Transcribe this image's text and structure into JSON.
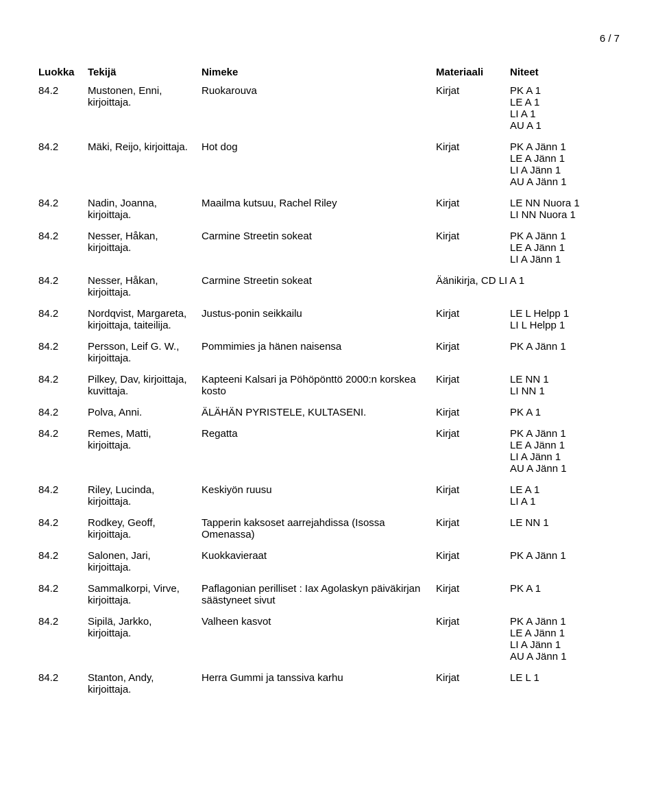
{
  "page_number": "6 / 7",
  "headers": {
    "luokka": "Luokka",
    "tekija": "Tekijä",
    "nimeke": "Nimeke",
    "materiaali": "Materiaali",
    "niteet": "Niteet"
  },
  "rows": [
    {
      "luokka": "84.2",
      "tekija": "Mustonen, Enni, kirjoittaja.",
      "nimeke": "Ruokarouva",
      "materiaali": "Kirjat",
      "niteet": [
        "PK A 1",
        "LE A 1",
        "LI A 1",
        "AU A 1"
      ]
    },
    {
      "luokka": "84.2",
      "tekija": "Mäki, Reijo, kirjoittaja.",
      "nimeke": "Hot dog",
      "materiaali": "Kirjat",
      "niteet": [
        "PK A Jänn 1",
        "LE A Jänn 1",
        "LI A Jänn 1",
        "AU A Jänn 1"
      ]
    },
    {
      "luokka": "84.2",
      "tekija": "Nadin, Joanna, kirjoittaja.",
      "nimeke": "Maailma kutsuu, Rachel Riley",
      "materiaali": "Kirjat",
      "niteet": [
        "LE NN Nuora 1",
        "LI NN Nuora 1"
      ]
    },
    {
      "luokka": "84.2",
      "tekija": "Nesser, Håkan, kirjoittaja.",
      "nimeke": "Carmine Streetin sokeat",
      "materiaali": "Kirjat",
      "niteet": [
        "PK A Jänn 1",
        "LE A Jänn 1",
        "LI A Jänn 1"
      ]
    },
    {
      "luokka": "84.2",
      "tekija": "Nesser, Håkan, kirjoittaja.",
      "nimeke": "Carmine Streetin sokeat",
      "materiaali": "Äänikirja, CD",
      "niteet": [
        "LI A 1"
      ],
      "materiaali_niteet_merged": true
    },
    {
      "luokka": "84.2",
      "tekija": "Nordqvist, Margareta, kirjoittaja, taiteilija.",
      "nimeke": "Justus-ponin seikkailu",
      "materiaali": "Kirjat",
      "niteet": [
        "LE L Helpp 1",
        "LI L Helpp 1"
      ]
    },
    {
      "luokka": "84.2",
      "tekija": "Persson, Leif G. W., kirjoittaja.",
      "nimeke": "Pommimies ja hänen naisensa",
      "materiaali": "Kirjat",
      "niteet": [
        "PK A Jänn 1"
      ]
    },
    {
      "luokka": "84.2",
      "tekija": "Pilkey, Dav, kirjoittaja, kuvittaja.",
      "nimeke": "Kapteeni Kalsari ja Pöhöpönttö 2000:n korskea kosto",
      "materiaali": "Kirjat",
      "niteet": [
        "LE NN 1",
        "LI NN 1"
      ]
    },
    {
      "luokka": "84.2",
      "tekija": "Polva, Anni.",
      "nimeke": "ÄLÄHÄN PYRISTELE, KULTASENI.",
      "materiaali": "Kirjat",
      "niteet": [
        "PK A 1"
      ]
    },
    {
      "luokka": "84.2",
      "tekija": "Remes, Matti, kirjoittaja.",
      "nimeke": "Regatta",
      "materiaali": "Kirjat",
      "niteet": [
        "PK A Jänn 1",
        "LE A Jänn 1",
        "LI A Jänn 1",
        "AU A Jänn 1"
      ]
    },
    {
      "luokka": "84.2",
      "tekija": "Riley, Lucinda, kirjoittaja.",
      "nimeke": "Keskiyön ruusu",
      "materiaali": "Kirjat",
      "niteet": [
        "LE A 1",
        "LI A 1"
      ]
    },
    {
      "luokka": "84.2",
      "tekija": "Rodkey, Geoff, kirjoittaja.",
      "nimeke": "Tapperin kaksoset aarrejahdissa (Isossa Omenassa)",
      "materiaali": "Kirjat",
      "niteet": [
        "LE NN 1"
      ]
    },
    {
      "luokka": "84.2",
      "tekija": "Salonen, Jari, kirjoittaja.",
      "nimeke": "Kuokkavieraat",
      "materiaali": "Kirjat",
      "niteet": [
        "PK A Jänn 1"
      ]
    },
    {
      "luokka": "84.2",
      "tekija": "Sammalkorpi, Virve, kirjoittaja.",
      "nimeke": "Paflagonian perilliset : Iax Agolaskyn päiväkirjan säästyneet sivut",
      "materiaali": "Kirjat",
      "niteet": [
        "PK A 1"
      ]
    },
    {
      "luokka": "84.2",
      "tekija": "Sipilä, Jarkko, kirjoittaja.",
      "nimeke": "Valheen kasvot",
      "materiaali": "Kirjat",
      "niteet": [
        "PK A Jänn 1",
        "LE A Jänn 1",
        "LI A Jänn 1",
        "AU A Jänn 1"
      ]
    },
    {
      "luokka": "84.2",
      "tekija": "Stanton, Andy, kirjoittaja.",
      "nimeke": "Herra Gummi ja tanssiva karhu",
      "materiaali": "Kirjat",
      "niteet": [
        "LE L 1"
      ]
    }
  ]
}
